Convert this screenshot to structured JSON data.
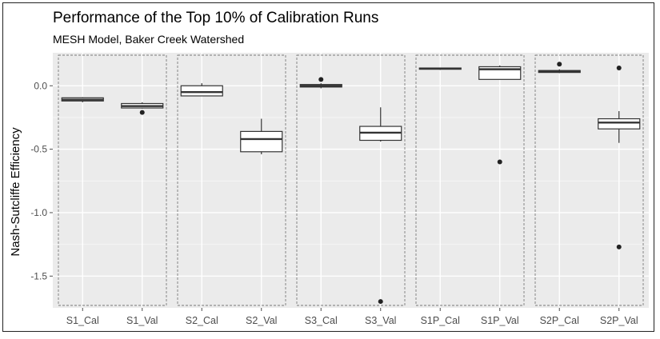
{
  "chart_data": {
    "type": "boxplot",
    "title": "Performance of the Top 10% of Calibration Runs",
    "subtitle": "MESH Model, Baker Creek Watershed",
    "xlabel": "",
    "ylabel": "Nash-Sutcliffe Efficiency",
    "ylim": [
      -1.75,
      0.26
    ],
    "yticks": [
      0.0,
      -0.5,
      -1.0,
      -1.5
    ],
    "ytick_labels": [
      "0.0",
      "-0.5",
      "-1.0",
      "-1.5"
    ],
    "grid": true,
    "facets": [
      {
        "categories": [
          "S1_Cal",
          "S1_Val"
        ]
      },
      {
        "categories": [
          "S2_Cal",
          "S2_Val"
        ]
      },
      {
        "categories": [
          "S3_Cal",
          "S3_Val"
        ]
      },
      {
        "categories": [
          "S1P_Cal",
          "S1P_Val"
        ]
      },
      {
        "categories": [
          "S2P_Cal",
          "S2P_Val"
        ]
      }
    ],
    "boxes": [
      {
        "category": "S1_Cal",
        "min": -0.13,
        "q1": -0.12,
        "median": -0.11,
        "q3": -0.095,
        "max": -0.09,
        "outliers": []
      },
      {
        "category": "S1_Val",
        "min": -0.18,
        "q1": -0.175,
        "median": -0.16,
        "q3": -0.14,
        "max": -0.13,
        "outliers": [
          -0.21
        ]
      },
      {
        "category": "S2_Cal",
        "min": -0.08,
        "q1": -0.08,
        "median": -0.05,
        "q3": 0.0,
        "max": 0.02,
        "outliers": []
      },
      {
        "category": "S2_Val",
        "min": -0.54,
        "q1": -0.52,
        "median": -0.42,
        "q3": -0.36,
        "max": -0.26,
        "outliers": []
      },
      {
        "category": "S3_Cal",
        "min": -0.02,
        "q1": -0.01,
        "median": 0.0,
        "q3": 0.01,
        "max": 0.02,
        "outliers": [
          0.05
        ]
      },
      {
        "category": "S3_Val",
        "min": -0.44,
        "q1": -0.43,
        "median": -0.37,
        "q3": -0.32,
        "max": -0.17,
        "outliers": [
          -1.7
        ]
      },
      {
        "category": "S1P_Cal",
        "min": 0.125,
        "q1": 0.13,
        "median": 0.135,
        "q3": 0.14,
        "max": 0.14,
        "outliers": []
      },
      {
        "category": "S1P_Val",
        "min": 0.05,
        "q1": 0.05,
        "median": 0.13,
        "q3": 0.15,
        "max": 0.16,
        "outliers": [
          -0.6
        ]
      },
      {
        "category": "S2P_Cal",
        "min": 0.1,
        "q1": 0.105,
        "median": 0.115,
        "q3": 0.12,
        "max": 0.13,
        "outliers": [
          0.17
        ]
      },
      {
        "category": "S2P_Val",
        "min": -0.45,
        "q1": -0.34,
        "median": -0.29,
        "q3": -0.26,
        "max": -0.2,
        "outliers": [
          0.14,
          -1.27
        ]
      }
    ]
  }
}
